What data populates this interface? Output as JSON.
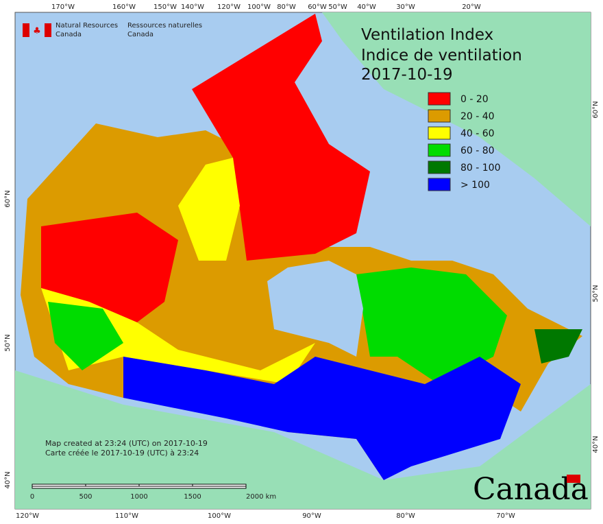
{
  "header": {
    "agency_en": [
      "Natural Resources",
      "Canada"
    ],
    "agency_fr": [
      "Ressources naturelles",
      "Canada"
    ]
  },
  "title": [
    "Ventilation Index",
    "Indice de ventilation",
    "2017-10-19"
  ],
  "legend": [
    {
      "label": "0 - 20",
      "color": "#ff0000"
    },
    {
      "label": "20 - 40",
      "color": "#dc9b00"
    },
    {
      "label": "40 - 60",
      "color": "#ffff00"
    },
    {
      "label": "60 - 80",
      "color": "#00dc00"
    },
    {
      "label": "80 - 100",
      "color": "#007800"
    },
    {
      "label": "> 100",
      "color": "#0000ff"
    }
  ],
  "graticule": {
    "top": [
      "170°W",
      "160°W",
      "150°W",
      "140°W",
      "120°W",
      "100°W",
      "80°W",
      "60°W",
      "50°W",
      "40°W",
      "30°W",
      "20°W"
    ],
    "bottom": [
      "120°W",
      "110°W",
      "100°W",
      "90°W",
      "80°W",
      "70°W"
    ],
    "left": [
      "60°N",
      "50°N",
      "40°N"
    ],
    "right": [
      "60°N",
      "50°N",
      "40°N"
    ]
  },
  "footer": {
    "created_en": "Map created at 23:24 (UTC) on 2017-10-19",
    "created_fr": "Carte créée le 2017-10-19 (UTC) à 23:24"
  },
  "scale_bar": [
    "0",
    "500",
    "1000",
    "1500",
    "2000 km"
  ],
  "wordmark": "Canada"
}
